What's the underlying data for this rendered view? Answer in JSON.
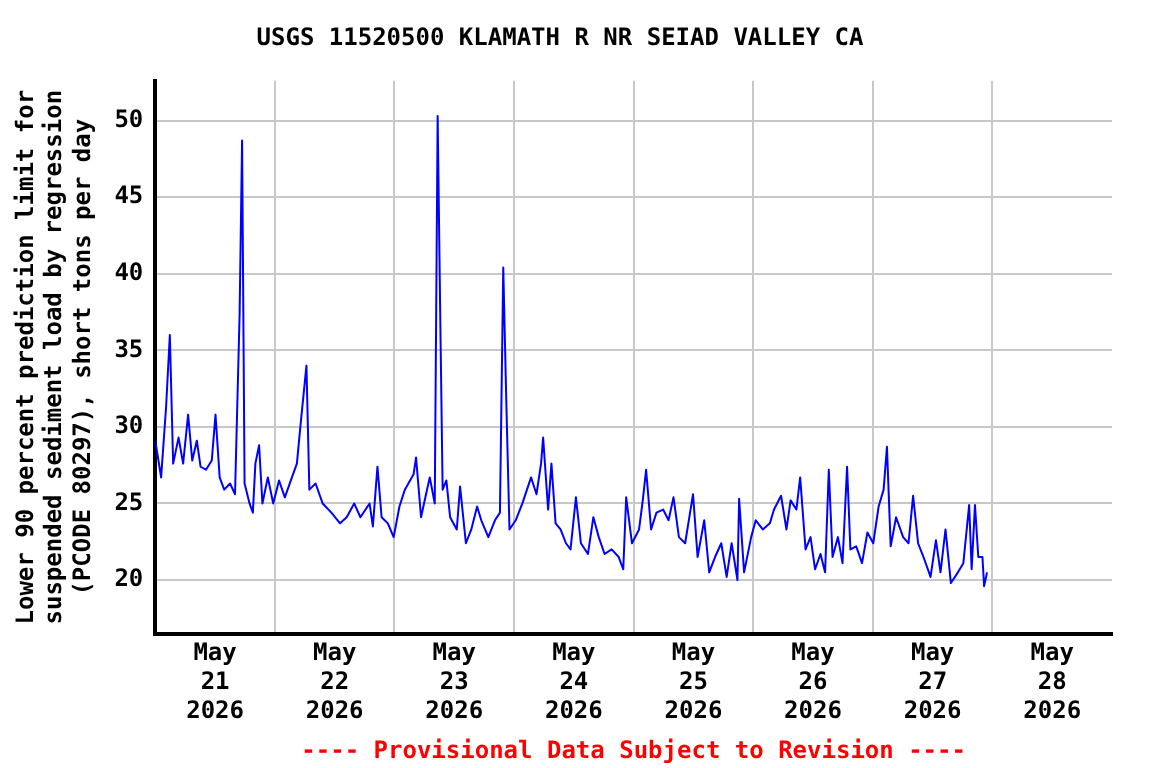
{
  "chart_data": {
    "type": "line",
    "title": "USGS 11520500 KLAMATH R NR SEIAD VALLEY CA",
    "ylabel": "Lower 90 percent prediction limit for\nsuspended sediment load by regression\n(PCODE 80297), short tons per day",
    "annotations": [
      "---- Provisional Data Subject to Revision ----"
    ],
    "series": [
      {
        "color": "#0000ff",
        "x": [
          "2026-05-21T00:00",
          "2026-05-21T01:10",
          "2026-05-21T02:10",
          "2026-05-21T02:55",
          "2026-05-21T03:35",
          "2026-05-21T04:40",
          "2026-05-21T05:35",
          "2026-05-21T06:35",
          "2026-05-21T07:25",
          "2026-05-21T08:20",
          "2026-05-21T09:05",
          "2026-05-21T10:10",
          "2026-05-21T11:20",
          "2026-05-21T12:05",
          "2026-05-21T12:55",
          "2026-05-21T13:50",
          "2026-05-21T15:00",
          "2026-05-21T16:00",
          "2026-05-21T16:55",
          "2026-05-21T17:25",
          "2026-05-21T17:55",
          "2026-05-21T18:55",
          "2026-05-21T19:35",
          "2026-05-21T20:05",
          "2026-05-21T20:50",
          "2026-05-21T21:30",
          "2026-05-21T22:35",
          "2026-05-21T23:40",
          "2026-05-22T00:50",
          "2026-05-22T02:00",
          "2026-05-22T03:25",
          "2026-05-22T04:25",
          "2026-05-22T05:10",
          "2026-05-22T06:20",
          "2026-05-22T06:55",
          "2026-05-22T08:10",
          "2026-05-22T09:35",
          "2026-05-22T11:20",
          "2026-05-22T13:05",
          "2026-05-22T14:25",
          "2026-05-22T15:55",
          "2026-05-22T17:10",
          "2026-05-22T19:00",
          "2026-05-22T19:40",
          "2026-05-22T20:35",
          "2026-05-22T21:25",
          "2026-05-22T22:40",
          "2026-05-22T23:50",
          "2026-05-23T01:00",
          "2026-05-23T02:05",
          "2026-05-23T03:50",
          "2026-05-23T04:20",
          "2026-05-23T05:20",
          "2026-05-23T06:20",
          "2026-05-23T07:05",
          "2026-05-23T08:05",
          "2026-05-23T08:40",
          "2026-05-23T09:10",
          "2026-05-23T09:40",
          "2026-05-23T10:25",
          "2026-05-23T11:10",
          "2026-05-23T12:30",
          "2026-05-23T13:10",
          "2026-05-23T14:20",
          "2026-05-23T15:25",
          "2026-05-23T16:35",
          "2026-05-23T17:25",
          "2026-05-23T18:50",
          "2026-05-23T20:10",
          "2026-05-23T21:10",
          "2026-05-23T21:50",
          "2026-05-23T22:25",
          "2026-05-23T23:05",
          "2026-05-24T00:20",
          "2026-05-24T01:40",
          "2026-05-24T03:25",
          "2026-05-24T04:30",
          "2026-05-24T05:25",
          "2026-05-24T05:50",
          "2026-05-24T06:50",
          "2026-05-24T07:30",
          "2026-05-24T08:20",
          "2026-05-24T09:20",
          "2026-05-24T10:25",
          "2026-05-24T11:20",
          "2026-05-24T12:25",
          "2026-05-24T13:25",
          "2026-05-24T14:50",
          "2026-05-24T15:55",
          "2026-05-24T17:00",
          "2026-05-24T18:10",
          "2026-05-24T19:35",
          "2026-05-24T21:00",
          "2026-05-24T21:55",
          "2026-05-24T22:30",
          "2026-05-24T23:40",
          "2026-05-25T01:05",
          "2026-05-25T01:50",
          "2026-05-25T02:30",
          "2026-05-25T03:30",
          "2026-05-25T04:35",
          "2026-05-25T05:55",
          "2026-05-25T07:00",
          "2026-05-25T08:00",
          "2026-05-25T09:05",
          "2026-05-25T10:20",
          "2026-05-25T11:55",
          "2026-05-25T12:50",
          "2026-05-25T14:10",
          "2026-05-25T15:10",
          "2026-05-25T16:20",
          "2026-05-25T17:35",
          "2026-05-25T18:40",
          "2026-05-25T19:40",
          "2026-05-25T20:50",
          "2026-05-25T21:10",
          "2026-05-25T22:10",
          "2026-05-25T23:35",
          "2026-05-26T00:30",
          "2026-05-26T01:55",
          "2026-05-26T03:20",
          "2026-05-26T04:10",
          "2026-05-26T05:35",
          "2026-05-26T06:40",
          "2026-05-26T07:30",
          "2026-05-26T08:40",
          "2026-05-26T09:25",
          "2026-05-26T10:30",
          "2026-05-26T11:30",
          "2026-05-26T12:25",
          "2026-05-26T13:30",
          "2026-05-26T14:25",
          "2026-05-26T15:10",
          "2026-05-26T15:55",
          "2026-05-26T17:00",
          "2026-05-26T17:55",
          "2026-05-26T18:50",
          "2026-05-26T19:30",
          "2026-05-26T20:40",
          "2026-05-26T21:50",
          "2026-05-26T22:55",
          "2026-05-27T00:05",
          "2026-05-27T01:10",
          "2026-05-27T02:10",
          "2026-05-27T02:50",
          "2026-05-27T03:35",
          "2026-05-27T04:40",
          "2026-05-27T06:05",
          "2026-05-27T07:10",
          "2026-05-27T08:05",
          "2026-05-27T09:05",
          "2026-05-27T10:10",
          "2026-05-27T11:35",
          "2026-05-27T12:40",
          "2026-05-27T13:35",
          "2026-05-27T14:35",
          "2026-05-27T15:40",
          "2026-05-27T17:05",
          "2026-05-27T18:10",
          "2026-05-27T19:20",
          "2026-05-27T19:50",
          "2026-05-27T20:30",
          "2026-05-27T21:10",
          "2026-05-27T22:00",
          "2026-05-27T22:20",
          "2026-05-27T22:55"
        ],
        "values": [
          29.1,
          26.7,
          31.3,
          36.0,
          27.6,
          29.3,
          27.6,
          30.8,
          27.8,
          29.1,
          27.4,
          27.2,
          27.8,
          30.8,
          26.7,
          25.9,
          26.3,
          25.6,
          37.3,
          48.7,
          26.3,
          25.0,
          24.4,
          27.6,
          28.8,
          25.0,
          26.7,
          25.0,
          26.5,
          25.4,
          26.7,
          27.6,
          30.2,
          34.0,
          25.9,
          26.3,
          25.0,
          24.4,
          23.7,
          24.1,
          25.0,
          24.1,
          25.0,
          23.5,
          27.4,
          24.1,
          23.7,
          22.8,
          24.8,
          25.9,
          26.9,
          28.0,
          24.1,
          25.6,
          26.7,
          25.0,
          50.3,
          37.7,
          25.9,
          26.5,
          24.1,
          23.3,
          26.1,
          22.4,
          23.3,
          24.8,
          23.9,
          22.8,
          23.9,
          24.4,
          40.4,
          32.0,
          23.3,
          23.9,
          25.0,
          26.7,
          25.6,
          27.6,
          29.3,
          24.6,
          27.6,
          23.7,
          23.3,
          22.4,
          22.0,
          25.4,
          22.4,
          21.7,
          24.1,
          22.8,
          21.7,
          22.0,
          21.5,
          20.7,
          25.4,
          22.4,
          23.3,
          25.2,
          27.2,
          23.3,
          24.4,
          24.6,
          23.9,
          25.4,
          22.8,
          22.4,
          25.6,
          21.5,
          23.9,
          20.5,
          21.5,
          22.4,
          20.2,
          22.4,
          20.0,
          25.3,
          20.5,
          22.8,
          23.9,
          23.3,
          23.7,
          24.6,
          25.5,
          23.3,
          25.2,
          24.6,
          26.7,
          22.0,
          22.8,
          20.7,
          21.7,
          20.5,
          27.2,
          21.5,
          22.8,
          21.1,
          27.4,
          22.0,
          22.2,
          21.1,
          23.1,
          22.4,
          24.8,
          25.9,
          28.7,
          22.2,
          24.1,
          22.8,
          22.4,
          25.5,
          22.4,
          21.5,
          20.2,
          22.6,
          20.5,
          23.3,
          19.8,
          20.5,
          21.1,
          24.9,
          20.7,
          24.9,
          21.5,
          21.5,
          19.6,
          20.5
        ]
      }
    ],
    "xlim": [
      "2026-05-21",
      "2026-05-29"
    ],
    "xticks": [
      {
        "value": "2026-05-21T12:00",
        "label": "May 21 2026"
      },
      {
        "value": "2026-05-22",
        "label": null
      },
      {
        "value": "2026-05-22T12:00",
        "label": "May 22 2026"
      },
      {
        "value": "2026-05-23",
        "label": null
      },
      {
        "value": "2026-05-23T12:00",
        "label": "May 23 2026"
      },
      {
        "value": "2026-05-24",
        "label": null
      },
      {
        "value": "2026-05-24T12:00",
        "label": "May 24 2026"
      },
      {
        "value": "2026-05-25",
        "label": null
      },
      {
        "value": "2026-05-25T12:00",
        "label": "May 25 2026"
      },
      {
        "value": "2026-05-26",
        "label": null
      },
      {
        "value": "2026-05-26T12:00",
        "label": "May 26 2026"
      },
      {
        "value": "2026-05-27",
        "label": null
      },
      {
        "value": "2026-05-27T12:00",
        "label": "May 27 2026"
      },
      {
        "value": "2026-05-28",
        "label": null
      },
      {
        "value": "2026-05-28T12:00",
        "label": "May 28 2026"
      }
    ],
    "ylim": [
      16.5,
      52.6
    ],
    "yticks": [
      20,
      25,
      30,
      35,
      40,
      45,
      50
    ],
    "grid": true,
    "marker": "none",
    "line_style": "solid",
    "legend": false
  }
}
